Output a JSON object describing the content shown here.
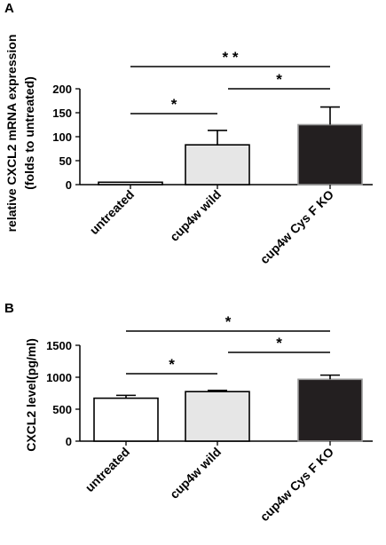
{
  "chart_data": [
    {
      "panel": "A",
      "type": "bar",
      "ylabel_lines": [
        "relative CXCL2 mRNA expression",
        "(folds to untreated)"
      ],
      "categories": [
        "untreated",
        "cup4w wild",
        "cup4w Cys F KO"
      ],
      "values": [
        5,
        83,
        125
      ],
      "errors": [
        0,
        30,
        37
      ],
      "ylim": [
        0,
        200
      ],
      "yticks": [
        0,
        50,
        100,
        150,
        200
      ],
      "bar_colors": [
        "#ffffff",
        "#e6e6e6",
        "#231f20"
      ],
      "bar_edges": [
        "#000000",
        "#000000",
        "#9a9a9a"
      ],
      "significance": [
        {
          "from": 0,
          "to": 2,
          "label": "* *"
        },
        {
          "from": 1,
          "to": 2,
          "label": "*"
        },
        {
          "from": 0,
          "to": 1,
          "label": "*"
        }
      ]
    },
    {
      "panel": "B",
      "type": "bar",
      "ylabel_lines": [
        "CXCL2 level(pg/ml)"
      ],
      "categories": [
        "untreated",
        "cup4w wild",
        "cup4w Cys F KO"
      ],
      "values": [
        672,
        775,
        968
      ],
      "errors": [
        45,
        20,
        65
      ],
      "ylim": [
        0,
        1500
      ],
      "yticks": [
        0,
        500,
        1000,
        1500
      ],
      "bar_colors": [
        "#ffffff",
        "#e6e6e6",
        "#231f20"
      ],
      "bar_edges": [
        "#000000",
        "#000000",
        "#9a9a9a"
      ],
      "significance": [
        {
          "from": 0,
          "to": 2,
          "label": "*"
        },
        {
          "from": 1,
          "to": 2,
          "label": "*"
        },
        {
          "from": 0,
          "to": 1,
          "label": "*"
        }
      ]
    }
  ]
}
